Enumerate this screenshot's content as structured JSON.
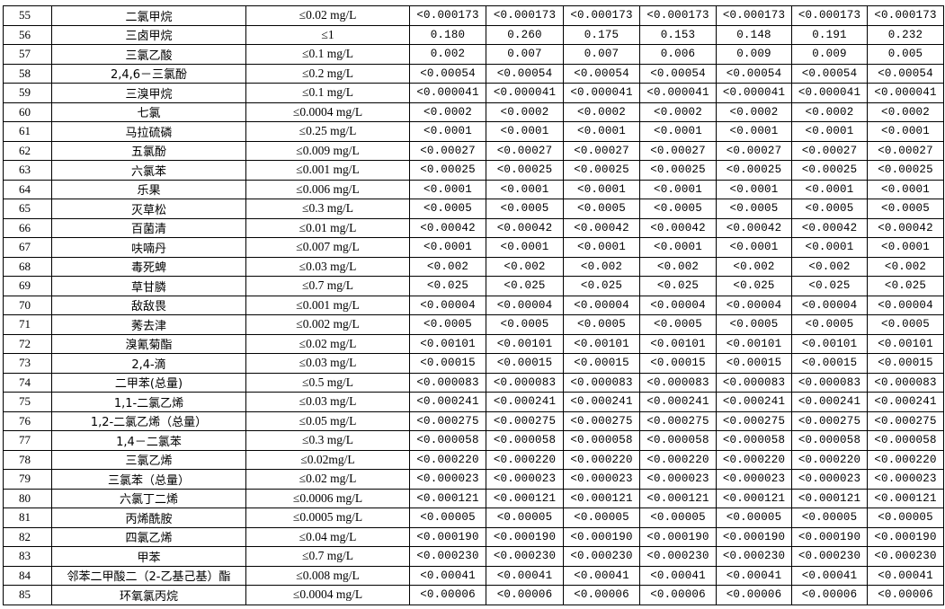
{
  "rows": [
    {
      "no": "55",
      "name": "二氯甲烷",
      "limit": "≤0.02 mg/L",
      "values": [
        "<0.000173",
        "<0.000173",
        "<0.000173",
        "<0.000173",
        "<0.000173",
        "<0.000173",
        "<0.000173"
      ]
    },
    {
      "no": "56",
      "name": "三卤甲烷",
      "limit": "≤1",
      "values": [
        "0.180",
        "0.260",
        "0.175",
        "0.153",
        "0.148",
        "0.191",
        "0.232"
      ]
    },
    {
      "no": "57",
      "name": "三氯乙酸",
      "limit": "≤0.1 mg/L",
      "values": [
        "0.002",
        "0.007",
        "0.007",
        "0.006",
        "0.009",
        "0.009",
        "0.005"
      ]
    },
    {
      "no": "58",
      "name": "2,4,6－三氯酚",
      "limit": "≤0.2 mg/L",
      "values": [
        "<0.00054",
        "<0.00054",
        "<0.00054",
        "<0.00054",
        "<0.00054",
        "<0.00054",
        "<0.00054"
      ]
    },
    {
      "no": "59",
      "name": "三溴甲烷",
      "limit": "≤0.1 mg/L",
      "values": [
        "<0.000041",
        "<0.000041",
        "<0.000041",
        "<0.000041",
        "<0.000041",
        "<0.000041",
        "<0.000041"
      ]
    },
    {
      "no": "60",
      "name": "七氯",
      "limit": "≤0.0004 mg/L",
      "values": [
        "<0.0002",
        "<0.0002",
        "<0.0002",
        "<0.0002",
        "<0.0002",
        "<0.0002",
        "<0.0002"
      ]
    },
    {
      "no": "61",
      "name": "马拉硫磷",
      "limit": "≤0.25 mg/L",
      "values": [
        "<0.0001",
        "<0.0001",
        "<0.0001",
        "<0.0001",
        "<0.0001",
        "<0.0001",
        "<0.0001"
      ]
    },
    {
      "no": "62",
      "name": "五氯酚",
      "limit": "≤0.009 mg/L",
      "values": [
        "<0.00027",
        "<0.00027",
        "<0.00027",
        "<0.00027",
        "<0.00027",
        "<0.00027",
        "<0.00027"
      ]
    },
    {
      "no": "63",
      "name": "六氯苯",
      "limit": "≤0.001 mg/L",
      "values": [
        "<0.00025",
        "<0.00025",
        "<0.00025",
        "<0.00025",
        "<0.00025",
        "<0.00025",
        "<0.00025"
      ]
    },
    {
      "no": "64",
      "name": "乐果",
      "limit": "≤0.006 mg/L",
      "values": [
        "<0.0001",
        "<0.0001",
        "<0.0001",
        "<0.0001",
        "<0.0001",
        "<0.0001",
        "<0.0001"
      ]
    },
    {
      "no": "65",
      "name": "灭草松",
      "limit": "≤0.3 mg/L",
      "values": [
        "<0.0005",
        "<0.0005",
        "<0.0005",
        "<0.0005",
        "<0.0005",
        "<0.0005",
        "<0.0005"
      ]
    },
    {
      "no": "66",
      "name": "百菌清",
      "limit": "≤0.01 mg/L",
      "values": [
        "<0.00042",
        "<0.00042",
        "<0.00042",
        "<0.00042",
        "<0.00042",
        "<0.00042",
        "<0.00042"
      ]
    },
    {
      "no": "67",
      "name": "呋喃丹",
      "limit": "≤0.007 mg/L",
      "values": [
        "<0.0001",
        "<0.0001",
        "<0.0001",
        "<0.0001",
        "<0.0001",
        "<0.0001",
        "<0.0001"
      ]
    },
    {
      "no": "68",
      "name": "毒死蜱",
      "limit": "≤0.03 mg/L",
      "values": [
        "<0.002",
        "<0.002",
        "<0.002",
        "<0.002",
        "<0.002",
        "<0.002",
        "<0.002"
      ]
    },
    {
      "no": "69",
      "name": "草甘膦",
      "limit": "≤0.7 mg/L",
      "values": [
        "<0.025",
        "<0.025",
        "<0.025",
        "<0.025",
        "<0.025",
        "<0.025",
        "<0.025"
      ]
    },
    {
      "no": "70",
      "name": "敌敌畏",
      "limit": "≤0.001 mg/L",
      "values": [
        "<0.00004",
        "<0.00004",
        "<0.00004",
        "<0.00004",
        "<0.00004",
        "<0.00004",
        "<0.00004"
      ]
    },
    {
      "no": "71",
      "name": "莠去津",
      "limit": "≤0.002 mg/L",
      "values": [
        "<0.0005",
        "<0.0005",
        "<0.0005",
        "<0.0005",
        "<0.0005",
        "<0.0005",
        "<0.0005"
      ]
    },
    {
      "no": "72",
      "name": "溴氰菊酯",
      "limit": "≤0.02 mg/L",
      "values": [
        "<0.00101",
        "<0.00101",
        "<0.00101",
        "<0.00101",
        "<0.00101",
        "<0.00101",
        "<0.00101"
      ]
    },
    {
      "no": "73",
      "name": "2,4-滴",
      "limit": "≤0.03 mg/L",
      "values": [
        "<0.00015",
        "<0.00015",
        "<0.00015",
        "<0.00015",
        "<0.00015",
        "<0.00015",
        "<0.00015"
      ]
    },
    {
      "no": "74",
      "name": "二甲苯(总量)",
      "limit": "≤0.5 mg/L",
      "values": [
        "<0.000083",
        "<0.000083",
        "<0.000083",
        "<0.000083",
        "<0.000083",
        "<0.000083",
        "<0.000083"
      ]
    },
    {
      "no": "75",
      "name": "1,1-二氯乙烯",
      "limit": "≤0.03 mg/L",
      "values": [
        "<0.000241",
        "<0.000241",
        "<0.000241",
        "<0.000241",
        "<0.000241",
        "<0.000241",
        "<0.000241"
      ]
    },
    {
      "no": "76",
      "name": "1,2-二氯乙烯（总量）",
      "limit": "≤0.05 mg/L",
      "values": [
        "<0.000275",
        "<0.000275",
        "<0.000275",
        "<0.000275",
        "<0.000275",
        "<0.000275",
        "<0.000275"
      ]
    },
    {
      "no": "77",
      "name": "1,4－二氯苯",
      "limit": "≤0.3 mg/L",
      "values": [
        "<0.000058",
        "<0.000058",
        "<0.000058",
        "<0.000058",
        "<0.000058",
        "<0.000058",
        "<0.000058"
      ]
    },
    {
      "no": "78",
      "name": "三氯乙烯",
      "limit": "≤0.02mg/L",
      "values": [
        "<0.000220",
        "<0.000220",
        "<0.000220",
        "<0.000220",
        "<0.000220",
        "<0.000220",
        "<0.000220"
      ]
    },
    {
      "no": "79",
      "name": "三氯苯（总量）",
      "limit": "≤0.02 mg/L",
      "values": [
        "<0.000023",
        "<0.000023",
        "<0.000023",
        "<0.000023",
        "<0.000023",
        "<0.000023",
        "<0.000023"
      ]
    },
    {
      "no": "80",
      "name": "六氯丁二烯",
      "limit": "≤0.0006 mg/L",
      "values": [
        "<0.000121",
        "<0.000121",
        "<0.000121",
        "<0.000121",
        "<0.000121",
        "<0.000121",
        "<0.000121"
      ]
    },
    {
      "no": "81",
      "name": "丙烯酰胺",
      "limit": "≤0.0005 mg/L",
      "values": [
        "<0.00005",
        "<0.00005",
        "<0.00005",
        "<0.00005",
        "<0.00005",
        "<0.00005",
        "<0.00005"
      ]
    },
    {
      "no": "82",
      "name": "四氯乙烯",
      "limit": "≤0.04 mg/L",
      "values": [
        "<0.000190",
        "<0.000190",
        "<0.000190",
        "<0.000190",
        "<0.000190",
        "<0.000190",
        "<0.000190"
      ]
    },
    {
      "no": "83",
      "name": "甲苯",
      "limit": "≤0.7 mg/L",
      "values": [
        "<0.000230",
        "<0.000230",
        "<0.000230",
        "<0.000230",
        "<0.000230",
        "<0.000230",
        "<0.000230"
      ]
    },
    {
      "no": "84",
      "name": "邻苯二甲酸二（2-乙基己基）酯",
      "limit": "≤0.008 mg/L",
      "values": [
        "<0.00041",
        "<0.00041",
        "<0.00041",
        "<0.00041",
        "<0.00041",
        "<0.00041",
        "<0.00041"
      ]
    },
    {
      "no": "85",
      "name": "环氧氯丙烷",
      "limit": "≤0.0004 mg/L",
      "values": [
        "<0.00006",
        "<0.00006",
        "<0.00006",
        "<0.00006",
        "<0.00006",
        "<0.00006",
        "<0.00006"
      ]
    }
  ]
}
